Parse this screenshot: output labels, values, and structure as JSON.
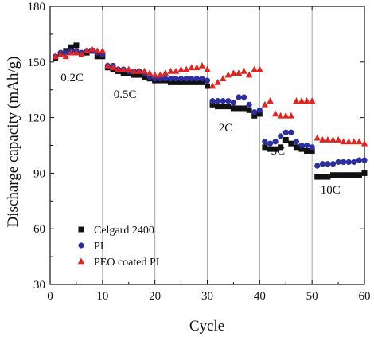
{
  "chart_data": {
    "type": "scatter",
    "xlabel": "Cycle",
    "ylabel": "Discharge capacity (mAh/g)",
    "xlim": [
      0,
      60
    ],
    "ylim": [
      30,
      180
    ],
    "xticks": [
      0,
      10,
      20,
      30,
      40,
      50,
      60
    ],
    "yticks": [
      30,
      60,
      90,
      120,
      150,
      180
    ],
    "vertical_lines_at": [
      10,
      20,
      30,
      40,
      50
    ],
    "grid": false,
    "legend_position": "bottom-left",
    "annotations": [
      {
        "text": "0.2C",
        "x": 4.2,
        "y": 139.5
      },
      {
        "text": "0.5C",
        "x": 14.3,
        "y": 130.5
      },
      {
        "text": "2C",
        "x": 33.5,
        "y": 112.5
      },
      {
        "text": "5C",
        "x": 43.5,
        "y": 100
      },
      {
        "text": "10C",
        "x": 53.5,
        "y": 79
      }
    ],
    "series": [
      {
        "name": "Celgard 2400",
        "marker": "square",
        "color": "#111111",
        "x": [
          1,
          2,
          3,
          4,
          5,
          6,
          7,
          8,
          9,
          10,
          11,
          12,
          13,
          14,
          15,
          16,
          17,
          18,
          19,
          20,
          21,
          22,
          23,
          24,
          25,
          26,
          27,
          28,
          29,
          30,
          31,
          32,
          33,
          34,
          35,
          36,
          37,
          38,
          39,
          40,
          41,
          42,
          43,
          44,
          45,
          46,
          47,
          48,
          49,
          50,
          51,
          52,
          53,
          54,
          55,
          56,
          57,
          58,
          59,
          60
        ],
        "y": [
          152,
          154,
          156,
          158,
          159,
          154,
          155,
          156,
          153,
          153,
          147,
          146,
          145,
          144,
          144,
          143,
          143,
          142,
          141,
          140,
          140,
          140,
          139,
          139,
          139,
          139,
          139,
          139,
          139,
          137,
          127,
          126,
          126,
          126,
          125,
          125,
          125,
          124,
          121,
          122,
          104,
          103,
          103,
          104,
          108,
          106,
          104,
          103,
          102,
          102,
          88,
          88,
          88,
          89,
          89,
          89,
          89,
          89,
          89,
          90
        ]
      },
      {
        "name": "PI",
        "marker": "circle",
        "color": "#2b2fa0",
        "x": [
          1,
          2,
          3,
          4,
          5,
          6,
          7,
          8,
          9,
          10,
          11,
          12,
          13,
          14,
          15,
          16,
          17,
          18,
          19,
          20,
          21,
          22,
          23,
          24,
          25,
          26,
          27,
          28,
          29,
          30,
          31,
          32,
          33,
          34,
          35,
          36,
          37,
          38,
          39,
          40,
          41,
          42,
          43,
          44,
          45,
          46,
          47,
          48,
          49,
          50,
          51,
          52,
          53,
          54,
          55,
          56,
          57,
          58,
          59,
          60
        ],
        "y": [
          153,
          155,
          155,
          156,
          156,
          155,
          156,
          156,
          155,
          154,
          148,
          148,
          146,
          146,
          145,
          145,
          145,
          144,
          142,
          141,
          141,
          141,
          141,
          141,
          141,
          141,
          141,
          141,
          141,
          140,
          129,
          129,
          129,
          129,
          128,
          131,
          131,
          127,
          123,
          124,
          107,
          106,
          107,
          110,
          112,
          112,
          107,
          105,
          105,
          104,
          94,
          95,
          95,
          95,
          96,
          96,
          96,
          96,
          97,
          97
        ]
      },
      {
        "name": "PEO coated PI",
        "marker": "triangle",
        "color": "#e3241e",
        "x": [
          1,
          2,
          3,
          4,
          5,
          6,
          7,
          8,
          9,
          10,
          11,
          12,
          13,
          14,
          15,
          16,
          17,
          18,
          19,
          20,
          21,
          22,
          23,
          24,
          25,
          26,
          27,
          28,
          29,
          30,
          31,
          32,
          33,
          34,
          35,
          36,
          37,
          38,
          39,
          40,
          41,
          42,
          43,
          44,
          45,
          46,
          47,
          48,
          49,
          50,
          51,
          52,
          53,
          54,
          55,
          56,
          57,
          58,
          59,
          60
        ],
        "y": [
          153,
          154,
          153,
          155,
          155,
          154,
          156,
          157,
          156,
          156,
          148,
          147,
          146,
          146,
          146,
          145,
          145,
          145,
          144,
          143,
          143,
          144,
          145,
          145,
          146,
          146,
          147,
          147,
          148,
          146,
          137,
          139,
          141,
          143,
          144,
          144,
          145,
          143,
          146,
          146,
          127,
          129,
          122,
          121,
          121,
          121,
          129,
          129,
          129,
          129,
          109,
          108,
          108,
          108,
          108,
          107,
          107,
          107,
          107,
          106
        ]
      }
    ]
  }
}
